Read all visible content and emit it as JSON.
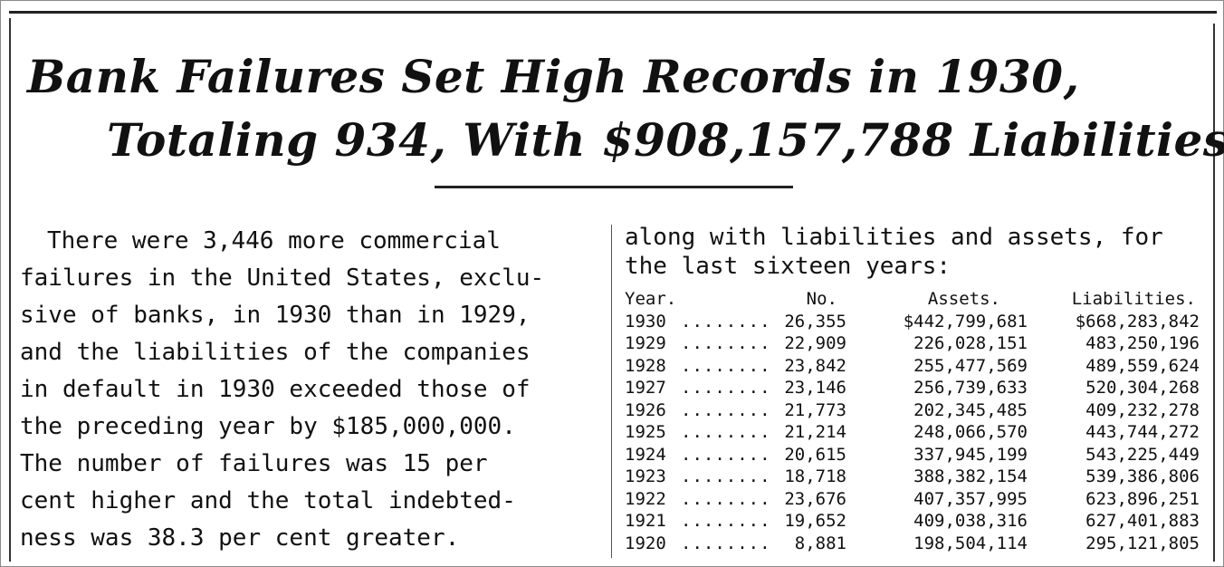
{
  "headline": {
    "line1": "Bank Failures Set High Records in 1930,",
    "line2": "Totaling 934, With $908,157,788 Liabilities"
  },
  "body_left": [
    "There were 3,446 more commercial",
    "failures in the United States, exclu-",
    "sive of banks, in 1930 than in 1929,",
    "and the liabilities of the companies",
    "in default in 1930 exceeded those of",
    "the preceding year by $185,000,000.",
    "The number of failures was 15 per",
    "cent higher and the total indebted-",
    "ness was 38.3 per cent greater."
  ],
  "body_right": [
    "along with liabilities and assets, for",
    "the last sixteen years:"
  ],
  "table": {
    "headers": {
      "year": "Year.",
      "no": "No.",
      "assets": "Assets.",
      "liabilities": "Liabilities."
    },
    "dots": "..............",
    "rows": [
      {
        "year": "1930",
        "no": "26,355",
        "assets": "$442,799,681",
        "liabilities": "$668,283,842"
      },
      {
        "year": "1929",
        "no": "22,909",
        "assets": "226,028,151",
        "liabilities": "483,250,196"
      },
      {
        "year": "1928",
        "no": "23,842",
        "assets": "255,477,569",
        "liabilities": "489,559,624"
      },
      {
        "year": "1927",
        "no": "23,146",
        "assets": "256,739,633",
        "liabilities": "520,304,268"
      },
      {
        "year": "1926",
        "no": "21,773",
        "assets": "202,345,485",
        "liabilities": "409,232,278"
      },
      {
        "year": "1925",
        "no": "21,214",
        "assets": "248,066,570",
        "liabilities": "443,744,272"
      },
      {
        "year": "1924",
        "no": "20,615",
        "assets": "337,945,199",
        "liabilities": "543,225,449"
      },
      {
        "year": "1923",
        "no": "18,718",
        "assets": "388,382,154",
        "liabilities": "539,386,806"
      },
      {
        "year": "1922",
        "no": "23,676",
        "assets": "407,357,995",
        "liabilities": "623,896,251"
      },
      {
        "year": "1921",
        "no": "19,652",
        "assets": "409,038,316",
        "liabilities": "627,401,883"
      },
      {
        "year": "1920",
        "no": "8,881",
        "assets": "198,504,114",
        "liabilities": "295,121,805"
      }
    ]
  }
}
